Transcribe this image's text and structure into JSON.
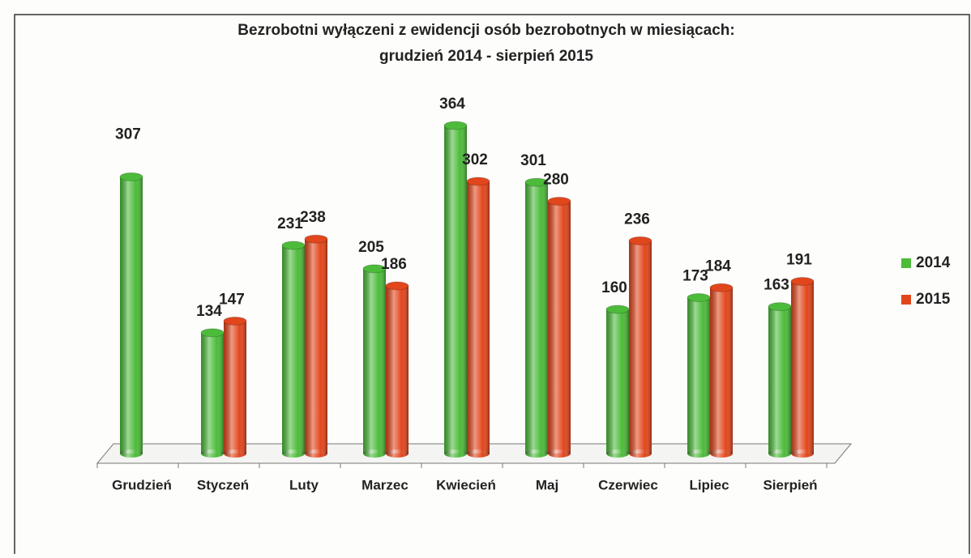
{
  "chart_data": {
    "type": "bar",
    "title": "Bezrobotni wyłączeni z ewidencji osób bezrobotnych w miesiącach:",
    "subtitle": "grudzień  2014 - sierpień 2015",
    "categories": [
      "Grudzień",
      "Styczeń",
      "Luty",
      "Marzec",
      "Kwiecień",
      "Maj",
      "Czerwiec",
      "Lipiec",
      "Sierpień"
    ],
    "series": [
      {
        "name": "2014",
        "color": "#4cbb3a",
        "values": [
          307,
          134,
          231,
          205,
          364,
          301,
          160,
          173,
          163
        ]
      },
      {
        "name": "2015",
        "color": "#e2461c",
        "values": [
          null,
          147,
          238,
          186,
          302,
          280,
          236,
          184,
          191
        ]
      }
    ],
    "legend": "right"
  }
}
